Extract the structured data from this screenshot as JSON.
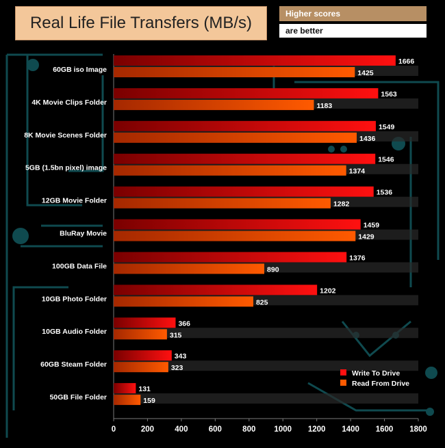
{
  "header": {
    "title": "Real Life File Transfers (MB/s)",
    "note_line1": "Higher scores",
    "note_line2": "are better"
  },
  "colors": {
    "background": "#000000",
    "write_bar": "#ff1010",
    "read_bar": "#ff5a00",
    "label_text": "#ffffff",
    "axis_line": "#7a7a7a",
    "circuit": "#0f4a4f"
  },
  "chart_data": {
    "type": "bar",
    "orientation": "horizontal",
    "title": "Real Life File Transfers (MB/s)",
    "categories": [
      "60GB iso Image",
      "4K Movie Clips Folder",
      "8K Movie Scenes Folder",
      "5GB (1.5bn pixel) image",
      "12GB Movie Folder",
      "BluRay Movie",
      "100GB Data File",
      "10GB Photo Folder",
      "10GB Audio Folder",
      "60GB Steam Folder",
      "50GB File Folder"
    ],
    "series": [
      {
        "name": "Write To  Drive",
        "values": [
          1666,
          1563,
          1549,
          1546,
          1536,
          1459,
          1376,
          1202,
          366,
          343,
          131
        ]
      },
      {
        "name": "Read From  Drive",
        "values": [
          1425,
          1183,
          1436,
          1374,
          1282,
          1429,
          890,
          825,
          315,
          323,
          159
        ]
      }
    ],
    "xlim": [
      0,
      1800
    ],
    "xticks": [
      0,
      200,
      400,
      600,
      800,
      1000,
      1200,
      1400,
      1600,
      1800
    ],
    "legend_position": "bottom-right",
    "xlabel": "",
    "ylabel": ""
  }
}
